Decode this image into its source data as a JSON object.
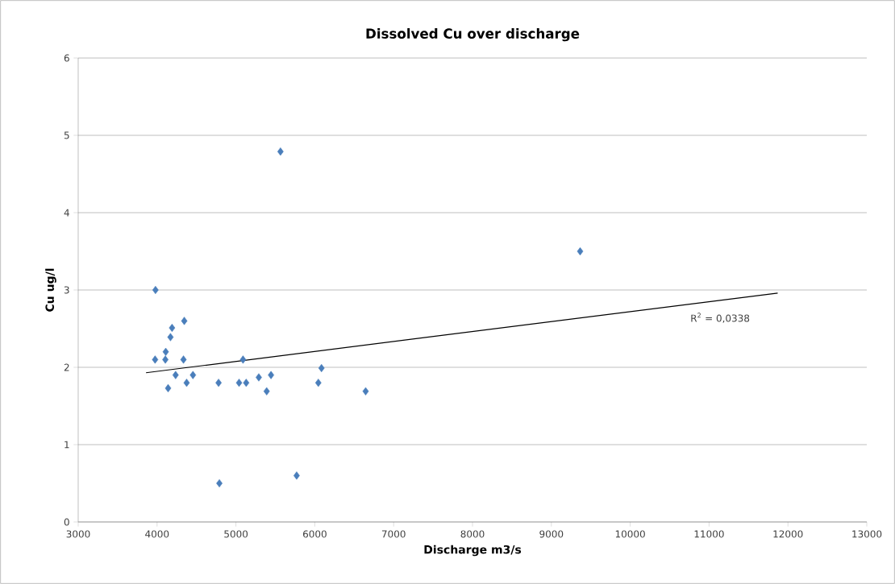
{
  "chart_data": {
    "type": "scatter",
    "title": "Dissolved Cu over discharge",
    "xlabel": "Discharge m3/s",
    "ylabel": "Cu ug/l",
    "xlim": [
      3000,
      13000
    ],
    "xticks": [
      3000,
      4000,
      5000,
      6000,
      7000,
      8000,
      9000,
      10000,
      11000,
      12000,
      13000
    ],
    "ylim": [
      0,
      6
    ],
    "yticks": [
      0,
      1,
      2,
      3,
      4,
      5,
      6
    ],
    "grid": "y",
    "marker": "diamond",
    "series": [
      {
        "color": "#4a7ebb",
        "x": [
          3980,
          3975,
          4105,
          4110,
          4170,
          4190,
          4345,
          4335,
          4235,
          4140,
          4375,
          4455,
          4780,
          5090,
          5040,
          5130,
          5290,
          5445,
          5390,
          6085,
          6045,
          6645,
          4790,
          5770,
          9365,
          5565
        ],
        "values": [
          3.0,
          2.1,
          2.1,
          2.2,
          2.39,
          2.51,
          2.6,
          2.1,
          1.9,
          1.73,
          1.8,
          1.9,
          1.8,
          2.1,
          1.8,
          1.8,
          1.87,
          1.9,
          1.69,
          1.99,
          1.8,
          1.69,
          0.5,
          0.6,
          3.5,
          4.79
        ]
      },
      {
        "type": "line",
        "color": "#000000",
        "marker": "none",
        "x": [
          3860,
          11870
        ],
        "values": [
          1.93,
          2.96
        ]
      }
    ],
    "annotations": [
      "R$^{2}$ = 0,0338"
    ]
  }
}
